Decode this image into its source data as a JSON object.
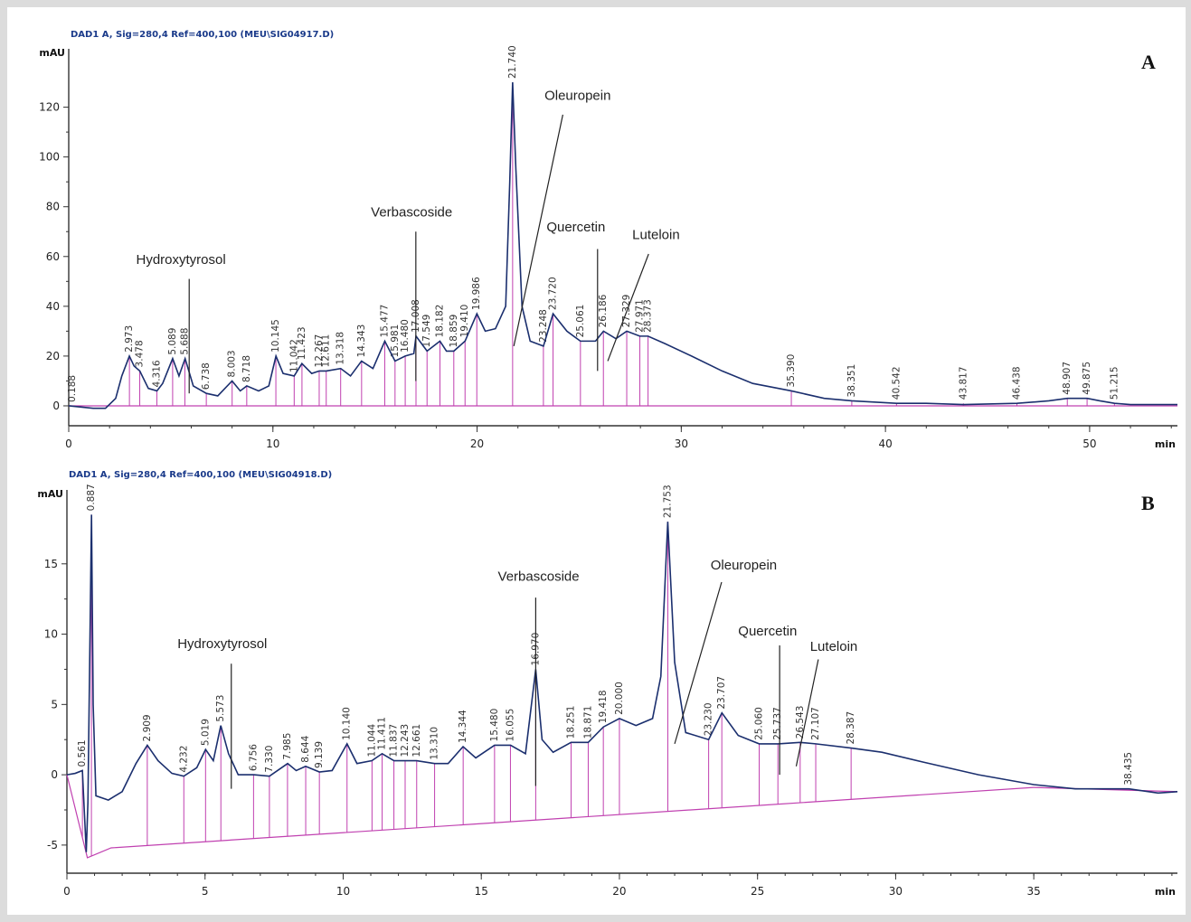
{
  "chart_data": [
    {
      "panel": "A",
      "type": "line",
      "header": "DAD1 A, Sig=280,4 Ref=400,100 (MEU\\SIG04917.D)",
      "xlabel": "min",
      "ylabel": "mAU",
      "xlim": [
        0,
        54.3
      ],
      "ylim": [
        -8,
        142
      ],
      "xticks": [
        0,
        10,
        20,
        30,
        40,
        50
      ],
      "yticks": [
        0,
        20,
        40,
        60,
        80,
        100,
        120
      ],
      "baseline": [
        [
          0,
          0
        ],
        [
          54.3,
          0
        ]
      ],
      "trace": [
        [
          0,
          0
        ],
        [
          0.6,
          -0.5
        ],
        [
          1.2,
          -1
        ],
        [
          1.8,
          -1
        ],
        [
          2.3,
          3
        ],
        [
          2.6,
          12
        ],
        [
          2.97,
          20
        ],
        [
          3.2,
          16
        ],
        [
          3.48,
          14
        ],
        [
          3.9,
          7
        ],
        [
          4.32,
          6
        ],
        [
          4.6,
          9
        ],
        [
          5.09,
          19
        ],
        [
          5.4,
          12
        ],
        [
          5.7,
          19
        ],
        [
          6.1,
          8
        ],
        [
          6.74,
          5
        ],
        [
          7.3,
          4
        ],
        [
          8.0,
          10
        ],
        [
          8.4,
          6
        ],
        [
          8.72,
          8
        ],
        [
          9.3,
          6
        ],
        [
          9.8,
          8
        ],
        [
          10.15,
          20
        ],
        [
          10.5,
          13
        ],
        [
          11.04,
          12
        ],
        [
          11.42,
          17
        ],
        [
          11.9,
          13
        ],
        [
          12.27,
          14
        ],
        [
          12.61,
          14
        ],
        [
          13.32,
          15
        ],
        [
          13.8,
          12
        ],
        [
          14.34,
          18
        ],
        [
          14.9,
          15
        ],
        [
          15.48,
          26
        ],
        [
          15.98,
          18
        ],
        [
          16.48,
          20
        ],
        [
          16.9,
          21
        ],
        [
          17.01,
          28
        ],
        [
          17.55,
          22
        ],
        [
          18.18,
          26
        ],
        [
          18.5,
          22
        ],
        [
          18.86,
          22
        ],
        [
          19.41,
          26
        ],
        [
          19.99,
          37
        ],
        [
          20.4,
          30
        ],
        [
          20.9,
          31
        ],
        [
          21.4,
          40
        ],
        [
          21.6,
          90
        ],
        [
          21.74,
          130
        ],
        [
          21.9,
          95
        ],
        [
          22.2,
          40
        ],
        [
          22.6,
          26
        ],
        [
          23.25,
          24
        ],
        [
          23.72,
          37
        ],
        [
          24.4,
          30
        ],
        [
          25.06,
          26
        ],
        [
          25.8,
          26
        ],
        [
          26.19,
          30
        ],
        [
          26.8,
          27
        ],
        [
          27.33,
          30
        ],
        [
          27.97,
          28
        ],
        [
          28.37,
          28
        ],
        [
          29.2,
          25
        ],
        [
          30.5,
          20
        ],
        [
          32,
          14
        ],
        [
          33.5,
          9
        ],
        [
          35.39,
          6
        ],
        [
          37,
          3
        ],
        [
          38.35,
          2
        ],
        [
          40.54,
          1
        ],
        [
          42,
          1
        ],
        [
          43.82,
          0.5
        ],
        [
          46.44,
          1
        ],
        [
          48,
          2
        ],
        [
          48.91,
          3
        ],
        [
          49.88,
          3
        ],
        [
          50.5,
          2
        ],
        [
          51.22,
          1
        ],
        [
          52,
          0.5
        ],
        [
          54.3,
          0.5
        ]
      ],
      "peaks": [
        {
          "rt": "0.188",
          "label_y": 0
        },
        {
          "rt": "2.973",
          "label_y": 20
        },
        {
          "rt": "3.478",
          "label_y": 14
        },
        {
          "rt": "4.316",
          "label_y": 6
        },
        {
          "rt": "5.089",
          "label_y": 19
        },
        {
          "rt": "5.688",
          "label_y": 19
        },
        {
          "rt": "6.738",
          "label_y": 5
        },
        {
          "rt": "8.003",
          "label_y": 10
        },
        {
          "rt": "8.718",
          "label_y": 8
        },
        {
          "rt": "10.145",
          "label_y": 20
        },
        {
          "rt": "11.042",
          "label_y": 12
        },
        {
          "rt": "11.423",
          "label_y": 17
        },
        {
          "rt": "12.267",
          "label_y": 14
        },
        {
          "rt": "12.611",
          "label_y": 14
        },
        {
          "rt": "13.318",
          "label_y": 15
        },
        {
          "rt": "14.343",
          "label_y": 18
        },
        {
          "rt": "15.477",
          "label_y": 26
        },
        {
          "rt": "15.981",
          "label_y": 18
        },
        {
          "rt": "16.480",
          "label_y": 20
        },
        {
          "rt": "17.008",
          "label_y": 28
        },
        {
          "rt": "17.549",
          "label_y": 22
        },
        {
          "rt": "18.182",
          "label_y": 26
        },
        {
          "rt": "18.859",
          "label_y": 22
        },
        {
          "rt": "19.410",
          "label_y": 26
        },
        {
          "rt": "19.986",
          "label_y": 37
        },
        {
          "rt": "21.740",
          "label_y": 130
        },
        {
          "rt": "23.248",
          "label_y": 24
        },
        {
          "rt": "23.720",
          "label_y": 37
        },
        {
          "rt": "25.061",
          "label_y": 26
        },
        {
          "rt": "26.186",
          "label_y": 30
        },
        {
          "rt": "27.329",
          "label_y": 30
        },
        {
          "rt": "27.971",
          "label_y": 28
        },
        {
          "rt": "28.373",
          "label_y": 28
        },
        {
          "rt": "35.390",
          "label_y": 6
        },
        {
          "rt": "38.351",
          "label_y": 2
        },
        {
          "rt": "40.542",
          "label_y": 1
        },
        {
          "rt": "43.817",
          "label_y": 1
        },
        {
          "rt": "46.438",
          "label_y": 1
        },
        {
          "rt": "48.907",
          "label_y": 3
        },
        {
          "rt": "49.875",
          "label_y": 3
        },
        {
          "rt": "51.215",
          "label_y": 1
        }
      ],
      "compounds": [
        {
          "name": "Hydroxytyrosol",
          "text_at": [
            3.3,
            57
          ],
          "line": [
            [
              5.9,
              51
            ],
            [
              5.9,
              5
            ]
          ]
        },
        {
          "name": "Verbascoside",
          "text_at": [
            14.8,
            76
          ],
          "line": [
            [
              17.0,
              70
            ],
            [
              17.0,
              10
            ]
          ]
        },
        {
          "name": "Oleuropein",
          "text_at": [
            23.3,
            123
          ],
          "line": [
            [
              24.2,
              117
            ],
            [
              21.8,
              24
            ]
          ]
        },
        {
          "name": "Quercetin",
          "text_at": [
            23.4,
            70
          ],
          "line": [
            [
              25.9,
              63
            ],
            [
              25.9,
              14
            ]
          ]
        },
        {
          "name": "Luteloin",
          "text_at": [
            27.6,
            67
          ],
          "line": [
            [
              28.4,
              61
            ],
            [
              26.4,
              18
            ]
          ]
        }
      ],
      "letter": "A"
    },
    {
      "panel": "B",
      "type": "line",
      "header": "DAD1 A, Sig=280,4 Ref=400,100 (MEU\\SIG04918.D)",
      "xlabel": "min",
      "ylabel": "mAU",
      "xlim": [
        0,
        40.2
      ],
      "ylim": [
        -7,
        20
      ],
      "xticks": [
        0,
        5,
        10,
        15,
        20,
        25,
        30,
        35
      ],
      "yticks": [
        -5,
        0,
        5,
        10,
        15
      ],
      "baseline": [
        [
          0,
          0
        ],
        [
          0.74,
          -5.9
        ],
        [
          1.6,
          -5.2
        ],
        [
          35,
          -0.9
        ],
        [
          40.2,
          -1.2
        ]
      ],
      "trace": [
        [
          0,
          0
        ],
        [
          0.3,
          0.1
        ],
        [
          0.56,
          0.3
        ],
        [
          0.7,
          -5.5
        ],
        [
          0.76,
          -2
        ],
        [
          0.89,
          18.5
        ],
        [
          0.95,
          5
        ],
        [
          1.05,
          -1.5
        ],
        [
          1.5,
          -1.8
        ],
        [
          2.0,
          -1.2
        ],
        [
          2.5,
          0.8
        ],
        [
          2.91,
          2.1
        ],
        [
          3.3,
          1
        ],
        [
          3.8,
          0.1
        ],
        [
          4.23,
          -0.1
        ],
        [
          4.7,
          0.5
        ],
        [
          5.02,
          1.8
        ],
        [
          5.3,
          1
        ],
        [
          5.57,
          3.5
        ],
        [
          5.85,
          1.5
        ],
        [
          6.2,
          0
        ],
        [
          6.76,
          0
        ],
        [
          7.33,
          -0.1
        ],
        [
          7.99,
          0.8
        ],
        [
          8.3,
          0.3
        ],
        [
          8.64,
          0.6
        ],
        [
          9.14,
          0.2
        ],
        [
          9.6,
          0.3
        ],
        [
          10.14,
          2.2
        ],
        [
          10.5,
          0.8
        ],
        [
          11.04,
          1
        ],
        [
          11.41,
          1.5
        ],
        [
          11.84,
          1
        ],
        [
          12.24,
          1
        ],
        [
          12.66,
          1
        ],
        [
          13.31,
          0.8
        ],
        [
          13.8,
          0.8
        ],
        [
          14.34,
          2
        ],
        [
          14.8,
          1.2
        ],
        [
          15.48,
          2.1
        ],
        [
          16.06,
          2.1
        ],
        [
          16.6,
          1.5
        ],
        [
          16.97,
          7.5
        ],
        [
          17.2,
          2.5
        ],
        [
          17.6,
          1.6
        ],
        [
          18.25,
          2.3
        ],
        [
          18.87,
          2.3
        ],
        [
          19.42,
          3.4
        ],
        [
          20.0,
          4
        ],
        [
          20.6,
          3.5
        ],
        [
          21.2,
          4
        ],
        [
          21.5,
          7
        ],
        [
          21.75,
          18
        ],
        [
          22.0,
          8
        ],
        [
          22.4,
          3
        ],
        [
          23.23,
          2.5
        ],
        [
          23.71,
          4.4
        ],
        [
          24.3,
          2.8
        ],
        [
          25.06,
          2.2
        ],
        [
          25.74,
          2.2
        ],
        [
          26.54,
          2.3
        ],
        [
          27.1,
          2.2
        ],
        [
          28.39,
          1.9
        ],
        [
          29.5,
          1.6
        ],
        [
          31,
          0.9
        ],
        [
          33,
          0
        ],
        [
          35,
          -0.7
        ],
        [
          36.5,
          -1
        ],
        [
          38.44,
          -1
        ],
        [
          39.5,
          -1.3
        ],
        [
          40.2,
          -1.2
        ]
      ],
      "peaks": [
        {
          "rt": "0.561",
          "label_y": 0.3
        },
        {
          "rt": "0.887",
          "label_y": 18.5
        },
        {
          "rt": "2.909",
          "label_y": 2.1
        },
        {
          "rt": "4.232",
          "label_y": -0.1
        },
        {
          "rt": "5.019",
          "label_y": 1.8
        },
        {
          "rt": "5.573",
          "label_y": 3.5
        },
        {
          "rt": "6.756",
          "label_y": 0
        },
        {
          "rt": "7.330",
          "label_y": -0.1
        },
        {
          "rt": "7.985",
          "label_y": 0.8
        },
        {
          "rt": "8.644",
          "label_y": 0.6
        },
        {
          "rt": "9.139",
          "label_y": 0.2
        },
        {
          "rt": "10.140",
          "label_y": 2.2
        },
        {
          "rt": "11.044",
          "label_y": 1
        },
        {
          "rt": "11.411",
          "label_y": 1.5
        },
        {
          "rt": "11.837",
          "label_y": 1
        },
        {
          "rt": "12.243",
          "label_y": 1
        },
        {
          "rt": "12.661",
          "label_y": 1
        },
        {
          "rt": "13.310",
          "label_y": 0.8
        },
        {
          "rt": "14.344",
          "label_y": 2
        },
        {
          "rt": "15.480",
          "label_y": 2.1
        },
        {
          "rt": "16.055",
          "label_y": 2.1
        },
        {
          "rt": "16.970",
          "label_y": 7.5
        },
        {
          "rt": "18.251",
          "label_y": 2.3
        },
        {
          "rt": "18.871",
          "label_y": 2.3
        },
        {
          "rt": "19.418",
          "label_y": 3.4
        },
        {
          "rt": "20.000",
          "label_y": 4
        },
        {
          "rt": "21.753",
          "label_y": 18
        },
        {
          "rt": "23.230",
          "label_y": 2.5
        },
        {
          "rt": "23.707",
          "label_y": 4.4
        },
        {
          "rt": "25.060",
          "label_y": 2.2
        },
        {
          "rt": "25.737",
          "label_y": 2.2
        },
        {
          "rt": "26.543",
          "label_y": 2.3
        },
        {
          "rt": "27.107",
          "label_y": 2.2
        },
        {
          "rt": "28.387",
          "label_y": 1.9
        },
        {
          "rt": "38.435",
          "label_y": -1
        }
      ],
      "compounds": [
        {
          "name": "Hydroxytyrosol",
          "text_at": [
            4.0,
            9.0
          ],
          "line": [
            [
              5.95,
              7.9
            ],
            [
              5.95,
              -1
            ]
          ]
        },
        {
          "name": "Verbascoside",
          "text_at": [
            15.6,
            13.8
          ],
          "line": [
            [
              16.97,
              12.6
            ],
            [
              16.97,
              -0.8
            ]
          ]
        },
        {
          "name": "Oleuropein",
          "text_at": [
            23.3,
            14.6
          ],
          "line": [
            [
              23.7,
              13.7
            ],
            [
              22.0,
              2.2
            ]
          ]
        },
        {
          "name": "Quercetin",
          "text_at": [
            24.3,
            9.9
          ],
          "line": [
            [
              25.8,
              9.2
            ],
            [
              25.8,
              0
            ]
          ]
        },
        {
          "name": "Luteloin",
          "text_at": [
            26.9,
            8.8
          ],
          "line": [
            [
              27.2,
              8.2
            ],
            [
              26.4,
              0.6
            ]
          ]
        }
      ],
      "letter": "B"
    }
  ]
}
